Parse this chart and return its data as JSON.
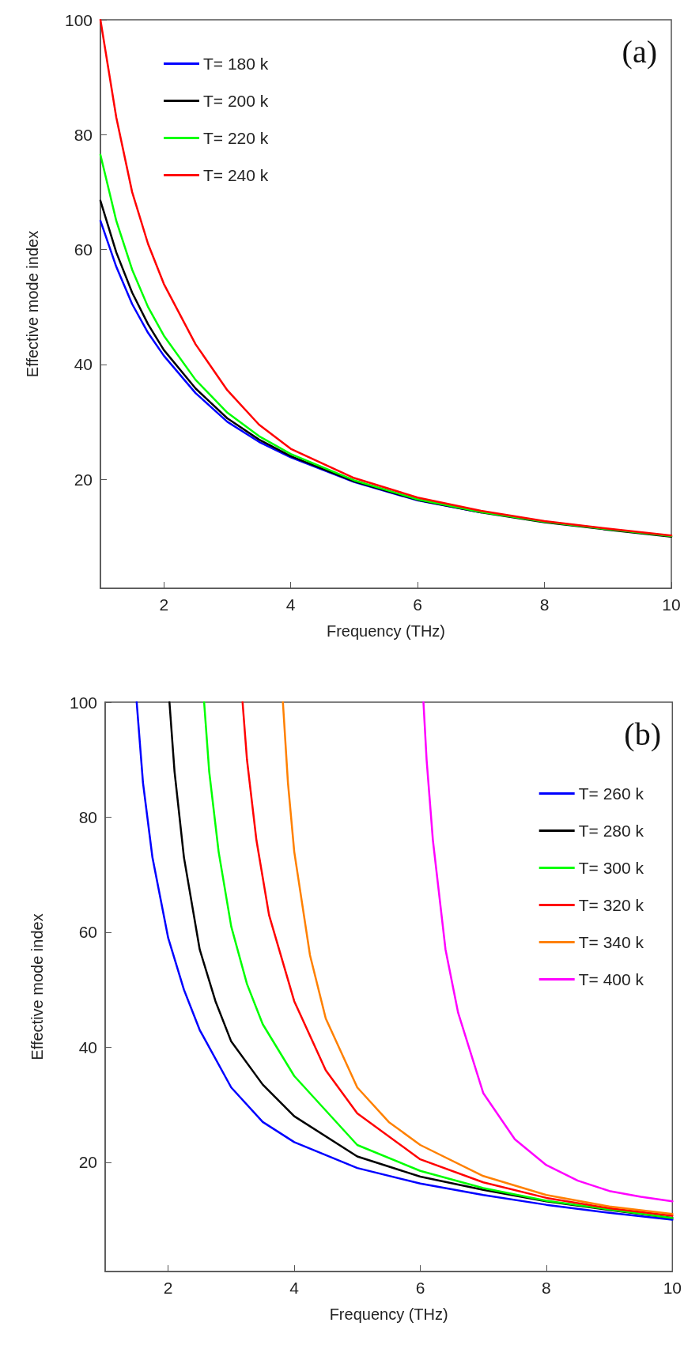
{
  "chart_data": [
    {
      "type": "line",
      "xlabel": "Frequency (THz)",
      "ylabel": "Effective mode index",
      "annotations": [
        "(a)"
      ],
      "xlim": [
        1,
        10
      ],
      "xticks": [
        2,
        4,
        6,
        8,
        10
      ],
      "ylim": [
        1,
        100
      ],
      "yticks": [
        20,
        40,
        60,
        80,
        100
      ],
      "grid": false,
      "legend": "top left",
      "series": [
        {
          "name": "T= 180 k",
          "color": "#0000ff",
          "x": [
            1,
            1.25,
            1.5,
            1.75,
            2,
            2.5,
            3,
            3.5,
            4,
            5,
            6,
            7
          ],
          "values": [
            65,
            57,
            50.5,
            45.5,
            41.5,
            35,
            30,
            26.5,
            23.8,
            19.5,
            16.3,
            14.2
          ]
        },
        {
          "name": "T= 200 k",
          "color": "#000000",
          "x": [
            1,
            1.25,
            1.5,
            1.75,
            2,
            2.5,
            3,
            3.5,
            4,
            5,
            6,
            7,
            8,
            9,
            10
          ],
          "values": [
            68.5,
            59.5,
            52.5,
            47,
            42.5,
            35.8,
            30.6,
            26.9,
            24,
            19.6,
            16.4,
            14.2,
            12.5,
            11.2,
            10
          ]
        },
        {
          "name": "T= 220 k",
          "color": "#00ff00",
          "x": [
            1,
            1.25,
            1.5,
            1.75,
            2,
            2.5,
            3,
            3.5,
            4,
            5,
            6,
            7,
            8,
            9,
            10
          ],
          "values": [
            76.5,
            65,
            56.5,
            50,
            45,
            37.3,
            31.6,
            27.5,
            24.4,
            19.8,
            16.5,
            14.3,
            12.6,
            11.3,
            10.1
          ]
        },
        {
          "name": "T= 240 k",
          "color": "#ff0000",
          "x": [
            1,
            1.25,
            1.5,
            1.75,
            2,
            2.5,
            3,
            3.5,
            4,
            5,
            6,
            7,
            8,
            9,
            10
          ],
          "values": [
            100,
            83,
            70,
            61,
            54,
            43.5,
            35.5,
            29.5,
            25.3,
            20.2,
            16.8,
            14.5,
            12.7,
            11.4,
            10.2
          ]
        }
      ]
    },
    {
      "type": "line",
      "xlabel": "Frequency (THz)",
      "ylabel": "Effective mode index",
      "annotations": [
        "(b)"
      ],
      "xlim": [
        1,
        10
      ],
      "xticks": [
        2,
        4,
        6,
        8,
        10
      ],
      "ylim": [
        1,
        100
      ],
      "yticks": [
        20,
        40,
        60,
        80,
        100
      ],
      "grid": false,
      "legend": "right",
      "series": [
        {
          "name": "T= 260 k",
          "color": "#0000ff",
          "x": [
            1.5,
            1.6,
            1.75,
            2,
            2.25,
            2.5,
            3,
            3.5,
            4,
            5,
            6,
            7,
            8,
            9,
            10
          ],
          "values": [
            100,
            86,
            73,
            59,
            50,
            43,
            33,
            27,
            23.5,
            19,
            16.3,
            14.3,
            12.6,
            11.2,
            10
          ]
        },
        {
          "name": "T= 280 k",
          "color": "#000000",
          "x": [
            2.02,
            2.1,
            2.25,
            2.5,
            2.75,
            3,
            3.5,
            4,
            5,
            6,
            7,
            8,
            9,
            10
          ],
          "values": [
            100,
            88,
            73,
            57,
            48,
            41,
            33.5,
            28,
            21,
            17.5,
            15.2,
            13.2,
            11.7,
            10.3
          ]
        },
        {
          "name": "T= 300 k",
          "color": "#00ff00",
          "x": [
            2.57,
            2.65,
            2.8,
            3,
            3.25,
            3.5,
            4,
            5,
            6,
            7,
            8,
            9,
            10
          ],
          "values": [
            100,
            88,
            74,
            61,
            51,
            44,
            35,
            23,
            18.5,
            15.5,
            13.3,
            11.8,
            10.3
          ]
        },
        {
          "name": "T= 320 k",
          "color": "#ff0000",
          "x": [
            3.18,
            3.25,
            3.4,
            3.6,
            4,
            4.5,
            5,
            6,
            7,
            8,
            9,
            10
          ],
          "values": [
            100,
            90,
            76,
            63,
            48,
            36,
            28.5,
            20.5,
            16.5,
            13.8,
            12,
            10.7
          ]
        },
        {
          "name": "T= 340 k",
          "color": "#ff8000",
          "x": [
            3.82,
            3.9,
            4,
            4.25,
            4.5,
            5,
            5.5,
            6,
            7,
            8,
            9,
            10
          ],
          "values": [
            100,
            86,
            74,
            56,
            45,
            33,
            27,
            23,
            17.6,
            14.3,
            12.3,
            11
          ]
        },
        {
          "name": "T= 400 k",
          "color": "#ff00ff",
          "x": [
            6.05,
            6.1,
            6.2,
            6.4,
            6.6,
            7,
            7.5,
            8,
            8.5,
            9,
            9.5,
            10
          ],
          "values": [
            100,
            90,
            76,
            57,
            46,
            32,
            24,
            19.5,
            16.8,
            15,
            14,
            13.2
          ]
        }
      ]
    }
  ]
}
